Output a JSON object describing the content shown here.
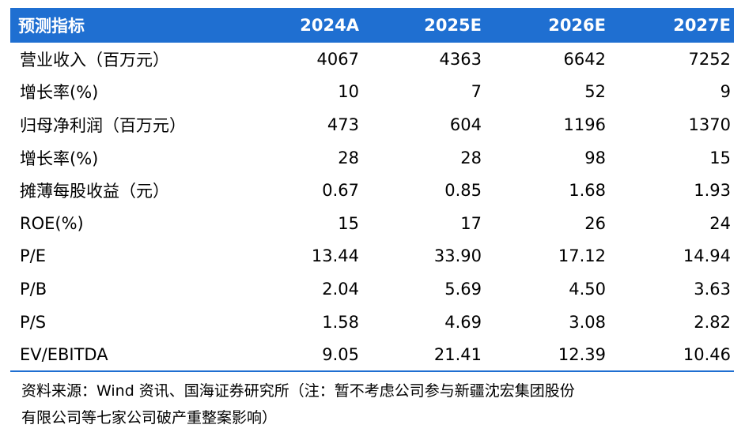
{
  "header": {
    "label": "预测指标",
    "years": [
      "2024A",
      "2025E",
      "2026E",
      "2027E"
    ]
  },
  "rows": [
    {
      "label": "营业收入（百万元）",
      "values": [
        "4067",
        "4363",
        "6642",
        "7252"
      ]
    },
    {
      "label": "增长率(%)",
      "values": [
        "10",
        "7",
        "52",
        "9"
      ]
    },
    {
      "label": "归母净利润（百万元）",
      "values": [
        "473",
        "604",
        "1196",
        "1370"
      ]
    },
    {
      "label": "增长率(%)",
      "values": [
        "28",
        "28",
        "98",
        "15"
      ]
    },
    {
      "label": "摊薄每股收益（元）",
      "values": [
        "0.67",
        "0.85",
        "1.68",
        "1.93"
      ]
    },
    {
      "label": "ROE(%)",
      "values": [
        "15",
        "17",
        "26",
        "24"
      ]
    },
    {
      "label": "P/E",
      "values": [
        "13.44",
        "33.90",
        "17.12",
        "14.94"
      ]
    },
    {
      "label": "P/B",
      "values": [
        "2.04",
        "5.69",
        "4.50",
        "3.63"
      ]
    },
    {
      "label": "P/S",
      "values": [
        "1.58",
        "4.69",
        "3.08",
        "2.82"
      ]
    },
    {
      "label": "EV/EBITDA",
      "values": [
        "9.05",
        "21.41",
        "12.39",
        "10.46"
      ]
    }
  ],
  "note": {
    "line1": "资料来源：Wind 资讯、国海证券研究所（注：暂不考虑公司参与新疆沈宏集团股份",
    "line2": "有限公司等七家公司破产重整案影响）"
  },
  "colors": {
    "header_bg": "#1f6fd1",
    "header_text": "#ffffff"
  }
}
